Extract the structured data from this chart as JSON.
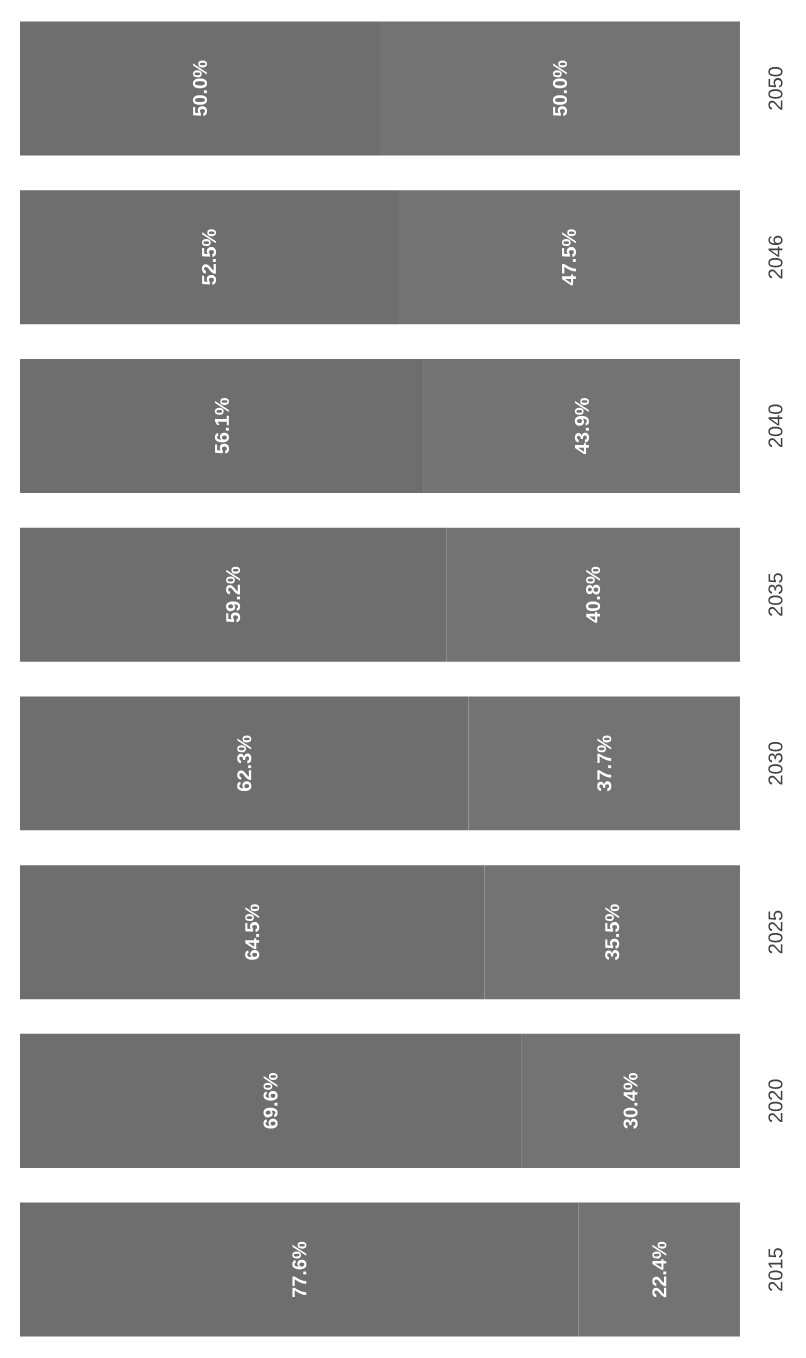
{
  "chart_data": {
    "type": "bar",
    "orientation": "horizontal",
    "stacked": true,
    "tick_labels": "y",
    "xlim": [
      0,
      100
    ],
    "categories": [
      "2050",
      "2046",
      "2040",
      "2035",
      "2030",
      "2025",
      "2020",
      "2015"
    ],
    "series": [
      {
        "color": "#6e6e6e",
        "values": [
          50.0,
          52.5,
          56.1,
          59.2,
          62.3,
          64.5,
          69.6,
          77.6
        ],
        "value_labels": [
          "50.0%",
          "52.5%",
          "56.1%",
          "59.2%",
          "62.3%",
          "64.5%",
          "69.6%",
          "77.6%"
        ]
      },
      {
        "color": "#737373",
        "values": [
          50.0,
          47.5,
          43.9,
          40.8,
          37.7,
          35.5,
          30.4,
          22.4
        ],
        "value_labels": [
          "50.0%",
          "47.5%",
          "43.9%",
          "40.8%",
          "37.7%",
          "35.5%",
          "30.4%",
          "22.4%"
        ]
      }
    ]
  }
}
